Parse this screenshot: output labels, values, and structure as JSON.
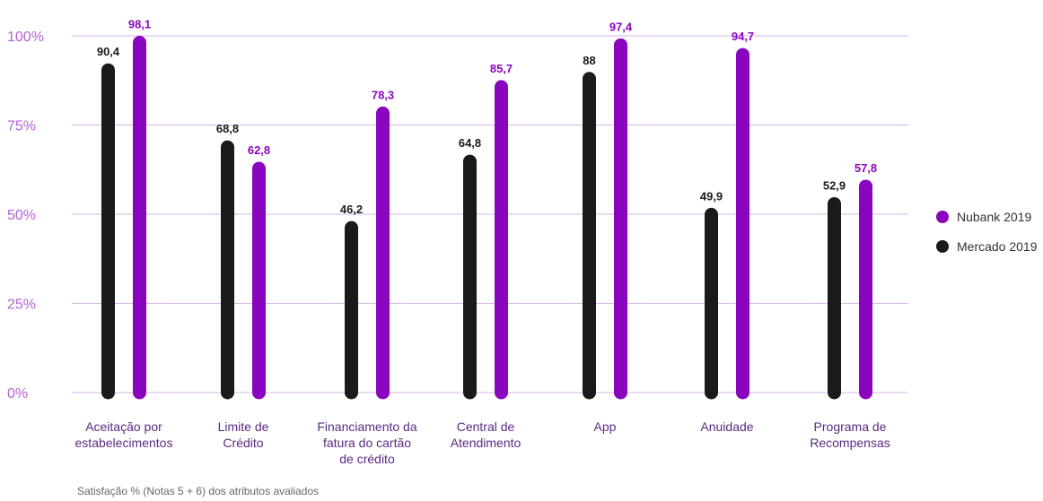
{
  "chart_data": {
    "type": "bar",
    "categories": [
      [
        "Aceitação por",
        "estabelecimentos"
      ],
      [
        "Limite de",
        "Crédito"
      ],
      [
        "Financiamento da",
        "fatura do cartão",
        "de crédito"
      ],
      [
        "Central de",
        "Atendimento"
      ],
      [
        "App"
      ],
      [
        "Anuidade"
      ],
      [
        "Programa de",
        "Recompensas"
      ]
    ],
    "series": [
      {
        "name": "Mercado 2019",
        "color": "#1a1a1a",
        "values": [
          90.4,
          68.8,
          46.2,
          64.8,
          88,
          49.9,
          52.9
        ],
        "labels": [
          "90,4",
          "68,8",
          "46,2",
          "64,8",
          "88",
          "49,9",
          "52,9"
        ]
      },
      {
        "name": "Nubank 2019",
        "color": "#8a05be",
        "values": [
          98.1,
          62.8,
          78.3,
          85.7,
          97.4,
          94.7,
          57.8
        ],
        "labels": [
          "98,1",
          "62,8",
          "78,3",
          "85,7",
          "97,4",
          "94,7",
          "57,8"
        ]
      }
    ],
    "yticks": [
      "0%",
      "25%",
      "50%",
      "75%",
      "100%"
    ],
    "ylim": [
      0,
      100
    ],
    "gridlines": true,
    "legend_position": "right",
    "footnote": "Satisfação % (Notas 5 + 6) dos atributos avaliados",
    "colors": {
      "grid": "#d9b3ea",
      "tick": "#b45fd6",
      "category": "#5a2a82"
    }
  },
  "legend": {
    "items": [
      {
        "label": "Nubank 2019",
        "color": "#8a05be"
      },
      {
        "label": "Mercado 2019",
        "color": "#1a1a1a"
      }
    ]
  }
}
